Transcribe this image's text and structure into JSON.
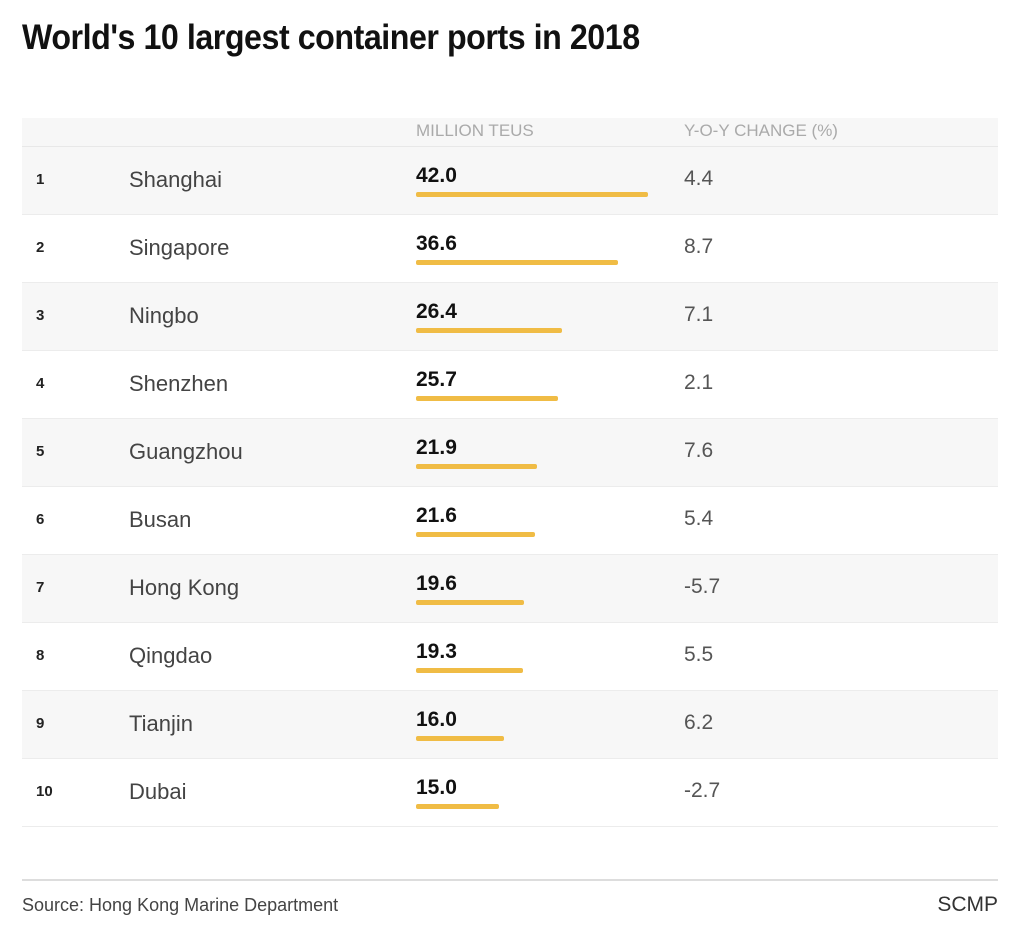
{
  "chart_data": {
    "type": "table",
    "title": "World's 10 largest container ports in 2018",
    "columns": [
      "",
      "",
      "MILLION TEUS",
      "Y-O-Y CHANGE (%)"
    ],
    "rows": [
      {
        "rank": "1",
        "port": "Shanghai",
        "teus": "42.0",
        "yoy": "4.4"
      },
      {
        "rank": "2",
        "port": "Singapore",
        "teus": "36.6",
        "yoy": "8.7"
      },
      {
        "rank": "3",
        "port": "Ningbo",
        "teus": "26.4",
        "yoy": "7.1"
      },
      {
        "rank": "4",
        "port": "Shenzhen",
        "teus": "25.7",
        "yoy": "2.1"
      },
      {
        "rank": "5",
        "port": "Guangzhou",
        "teus": "21.9",
        "yoy": "7.6"
      },
      {
        "rank": "6",
        "port": "Busan",
        "teus": "21.6",
        "yoy": "5.4"
      },
      {
        "rank": "7",
        "port": "Hong Kong",
        "teus": "19.6",
        "yoy": "-5.7"
      },
      {
        "rank": "8",
        "port": "Qingdao",
        "teus": "19.3",
        "yoy": "5.5"
      },
      {
        "rank": "9",
        "port": "Tianjin",
        "teus": "16.0",
        "yoy": "6.2"
      },
      {
        "rank": "10",
        "port": "Dubai",
        "teus": "15.0",
        "yoy": "-2.7"
      }
    ],
    "bar_color": "#f0bc45",
    "bar_max": 42.0
  },
  "footer": {
    "source": "Source: Hong Kong Marine Department",
    "brand": "SCMP"
  }
}
